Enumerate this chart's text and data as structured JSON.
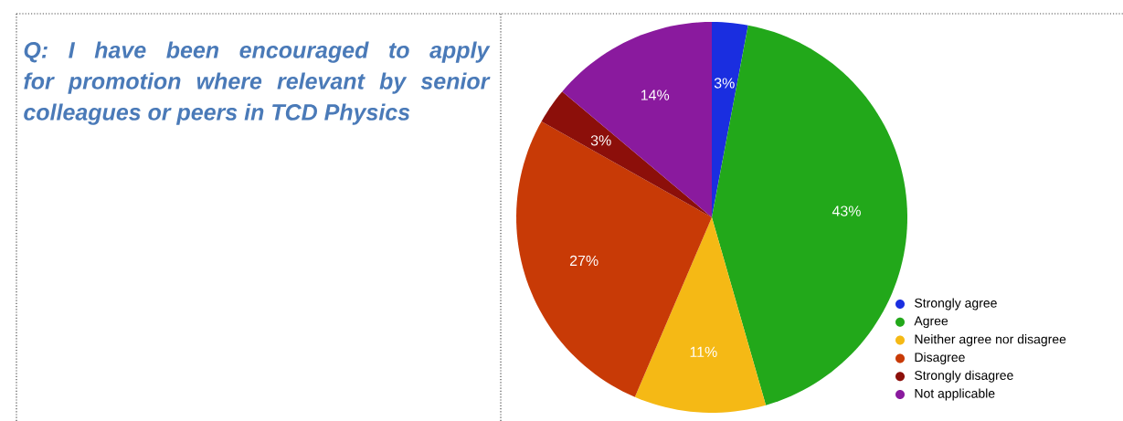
{
  "chart_data": {
    "type": "pie",
    "title": "Q: I have been encouraged to apply for promotion where relevant by senior colleagues or peers in TCD Physics",
    "categories": [
      "Strongly agree",
      "Agree",
      "Neither agree nor disagree",
      "Disagree",
      "Strongly disagree",
      "Not applicable"
    ],
    "values": [
      3,
      43,
      11,
      27,
      3,
      14
    ],
    "value_labels": [
      "3%",
      "43%",
      "11%",
      "27%",
      "3%",
      "14%"
    ],
    "colors": [
      "#1a2ee0",
      "#22a81a",
      "#f5b915",
      "#c83a06",
      "#8c0f0a",
      "#8a1a9e"
    ],
    "legend": "bottom right"
  }
}
